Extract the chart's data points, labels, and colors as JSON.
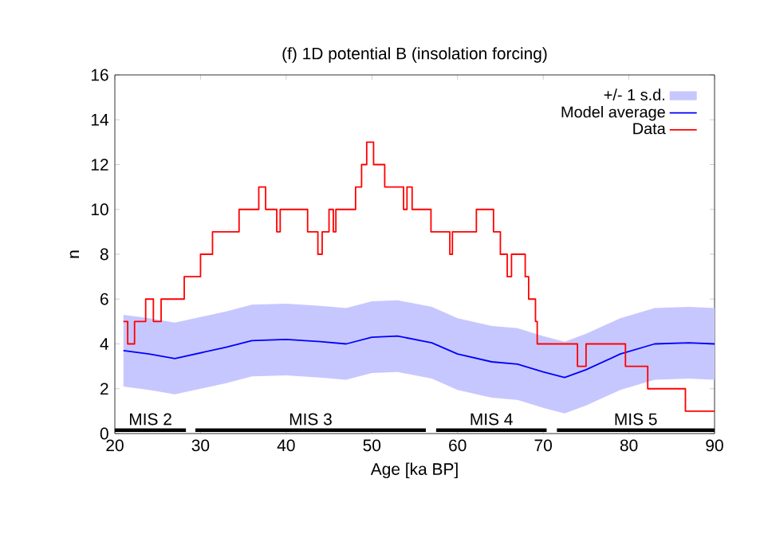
{
  "chart_data": {
    "type": "line",
    "title": "(f) 1D potential B (insolation forcing)",
    "xlabel": "Age [ka BP]",
    "ylabel": "n",
    "xlim": [
      20,
      90
    ],
    "xticks": [
      20,
      30,
      40,
      50,
      60,
      70,
      80,
      90
    ],
    "ylim": [
      0,
      16
    ],
    "yticks": [
      0,
      2,
      4,
      6,
      8,
      10,
      12,
      14,
      16
    ],
    "legend": "top right",
    "grid": false,
    "annotations": [
      "+/- 1 s.d."
    ],
    "series": [
      {
        "name": "Model average",
        "color": "#0000ff",
        "x": [
          21,
          24,
          27,
          30,
          33,
          36,
          40,
          44,
          47,
          50,
          53,
          57,
          60,
          64,
          67,
          70,
          72.5,
          75,
          79,
          83,
          87,
          90
        ],
        "values": [
          3.7,
          3.55,
          3.35,
          3.6,
          3.85,
          4.15,
          4.2,
          4.1,
          4.0,
          4.3,
          4.35,
          4.05,
          3.55,
          3.2,
          3.1,
          2.75,
          2.5,
          2.85,
          3.55,
          4.0,
          4.05,
          4.0
        ],
        "lower": [
          2.1,
          1.95,
          1.75,
          2.0,
          2.25,
          2.55,
          2.6,
          2.5,
          2.4,
          2.7,
          2.75,
          2.45,
          1.95,
          1.6,
          1.5,
          1.15,
          0.9,
          1.25,
          1.95,
          2.4,
          2.45,
          2.4
        ],
        "upper": [
          5.3,
          5.15,
          4.95,
          5.2,
          5.45,
          5.75,
          5.8,
          5.7,
          5.6,
          5.9,
          5.95,
          5.65,
          5.15,
          4.8,
          4.7,
          4.35,
          4.1,
          4.45,
          5.15,
          5.6,
          5.65,
          5.6
        ]
      },
      {
        "name": "Data",
        "type": "step",
        "color": "#ff0000",
        "x": [
          21,
          21.5,
          22.3,
          23.6,
          24.5,
          25.4,
          28.1,
          30,
          31.4,
          34.5,
          36.8,
          37.6,
          38.9,
          39.3,
          42.5,
          43.7,
          44.2,
          45,
          45.5,
          45.8,
          48.1,
          48.8,
          49.4,
          50.2,
          51.5,
          53.7,
          54.1,
          54.7,
          56.9,
          59.1,
          59.4,
          62.2,
          64.2,
          65,
          65.8,
          66.3,
          67.9,
          68.3,
          69.1,
          69.3,
          74,
          75,
          79.6,
          82.2,
          86.6,
          90
        ],
        "values": [
          5,
          4,
          5,
          6,
          5,
          6,
          7,
          8,
          9,
          10,
          11,
          10,
          9,
          10,
          9,
          8,
          9,
          10,
          9,
          10,
          11,
          12,
          13,
          12,
          11,
          10,
          11,
          10,
          9,
          8,
          9,
          10,
          9,
          8,
          7,
          8,
          7,
          6,
          5,
          4,
          3,
          4,
          3,
          2,
          1,
          1
        ]
      },
      {
        "name": "MIS 2",
        "color": "#000000",
        "x": [
          20,
          28.3
        ],
        "values": [
          0.15,
          0.15
        ]
      },
      {
        "name": "MIS 3",
        "color": "#000000",
        "x": [
          29.4,
          56.3
        ],
        "values": [
          0.15,
          0.15
        ]
      },
      {
        "name": "MIS 4",
        "color": "#000000",
        "x": [
          57.5,
          70.4
        ],
        "values": [
          0.15,
          0.15
        ]
      },
      {
        "name": "MIS 5",
        "color": "#000000",
        "x": [
          71.6,
          90
        ],
        "values": [
          0.15,
          0.15
        ]
      }
    ]
  }
}
